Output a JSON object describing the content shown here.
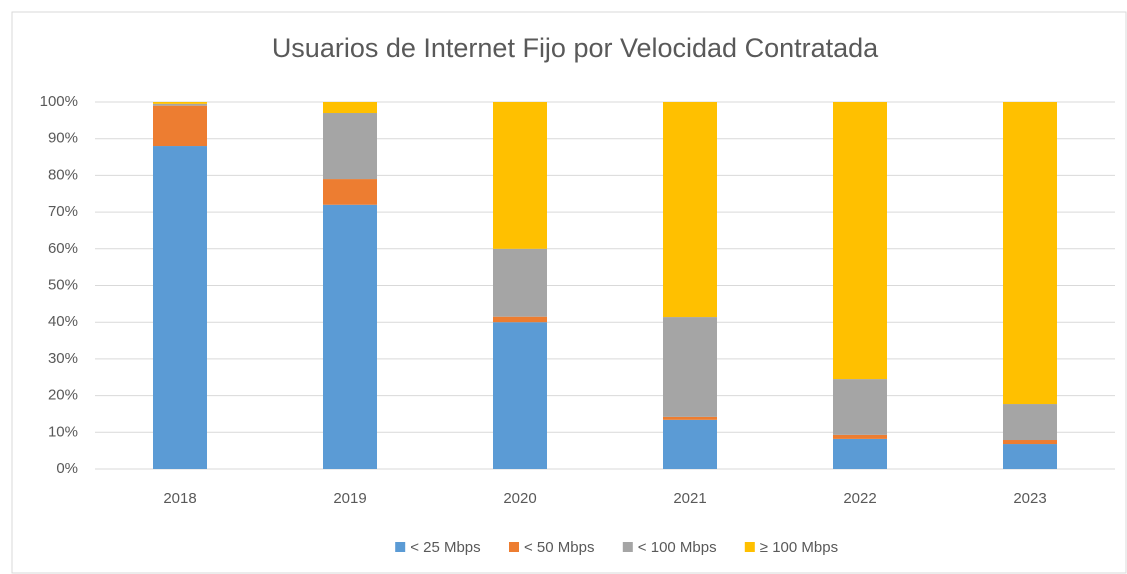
{
  "chart_data": {
    "type": "stacked_bar",
    "title": "Usuarios de Internet Fijo por Velocidad Contratada",
    "categories": [
      "2018",
      "2019",
      "2020",
      "2021",
      "2022",
      "2023"
    ],
    "series": [
      {
        "name": "< 25 Mbps",
        "color": "#5b9bd5",
        "values": [
          88,
          72,
          40,
          13.4,
          8.2,
          6.8
        ]
      },
      {
        "name": "< 50 Mbps",
        "color": "#ed7d31",
        "values": [
          11,
          7,
          1.5,
          0.8,
          1.1,
          1.1
        ]
      },
      {
        "name": "< 100 Mbps",
        "color": "#a5a5a5",
        "values": [
          0.5,
          18,
          18.5,
          27.2,
          15.2,
          9.8
        ]
      },
      {
        "name": "≥ 100 Mbps",
        "color": "#ffc000",
        "values": [
          0.5,
          3,
          40,
          58.6,
          75.5,
          82.3
        ]
      }
    ],
    "ylim": [
      0,
      100
    ],
    "yticks": [
      {
        "value": 0,
        "label": "0%"
      },
      {
        "value": 10,
        "label": "10%"
      },
      {
        "value": 20,
        "label": "20%"
      },
      {
        "value": 30,
        "label": "30%"
      },
      {
        "value": 40,
        "label": "40%"
      },
      {
        "value": 50,
        "label": "50%"
      },
      {
        "value": 60,
        "label": "60%"
      },
      {
        "value": 70,
        "label": "70%"
      },
      {
        "value": 80,
        "label": "80%"
      },
      {
        "value": 90,
        "label": "90%"
      },
      {
        "value": 100,
        "label": "100%"
      }
    ],
    "grid": true,
    "legend": "bottom"
  }
}
